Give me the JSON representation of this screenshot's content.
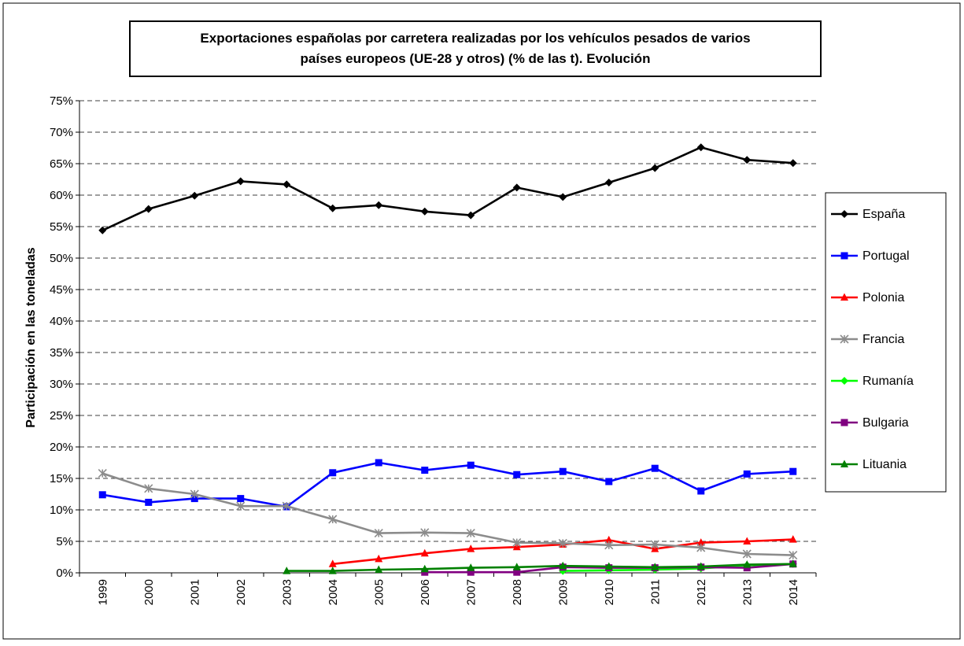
{
  "chart_data": {
    "type": "line",
    "title_line1": "Exportaciones españolas por carretera realizadas por los vehículos pesados de varios",
    "title_line2": "países europeos (UE-28 y otros) (% de las t). Evolución",
    "xlabel": "",
    "ylabel": "Participación en las toneladas",
    "ylim": [
      0,
      75
    ],
    "ytick_step": 5,
    "yticks": [
      "0%",
      "5%",
      "10%",
      "15%",
      "20%",
      "25%",
      "30%",
      "35%",
      "40%",
      "45%",
      "50%",
      "55%",
      "60%",
      "65%",
      "70%",
      "75%"
    ],
    "grid": true,
    "legend_position": "right",
    "categories": [
      "1999",
      "2000",
      "2001",
      "2002",
      "2003",
      "2004",
      "2005",
      "2006",
      "2007",
      "2008",
      "2009",
      "2010",
      "2011",
      "2012",
      "2013",
      "2014"
    ],
    "series": [
      {
        "name": "España",
        "color": "#000000",
        "marker": "diamond",
        "values": [
          54.4,
          57.8,
          59.9,
          62.2,
          61.7,
          57.9,
          58.4,
          57.4,
          56.8,
          61.2,
          59.7,
          62.0,
          64.3,
          67.6,
          65.6,
          65.1
        ]
      },
      {
        "name": "Portugal",
        "color": "#0000ff",
        "marker": "square",
        "values": [
          12.4,
          11.2,
          11.8,
          11.8,
          10.5,
          15.9,
          17.5,
          16.3,
          17.1,
          15.6,
          16.1,
          14.5,
          16.6,
          13.0,
          15.7,
          16.1
        ]
      },
      {
        "name": "Polonia",
        "color": "#ff0000",
        "marker": "triangle",
        "values": [
          null,
          null,
          null,
          null,
          null,
          1.4,
          2.2,
          3.1,
          3.8,
          4.1,
          4.5,
          5.2,
          3.8,
          4.8,
          5.0,
          5.3
        ]
      },
      {
        "name": "Francia",
        "color": "#8c8c8c",
        "marker": "asterisk",
        "values": [
          15.8,
          13.4,
          12.5,
          10.6,
          10.6,
          8.5,
          6.3,
          6.4,
          6.3,
          4.8,
          4.7,
          4.4,
          4.5,
          4.0,
          3.0,
          2.8
        ]
      },
      {
        "name": "Rumanía",
        "color": "#00ff00",
        "marker": "diamond",
        "values": [
          null,
          null,
          null,
          null,
          null,
          null,
          null,
          null,
          null,
          null,
          0.3,
          0.4,
          0.5,
          0.7,
          1.2,
          1.4
        ]
      },
      {
        "name": "Bulgaria",
        "color": "#800080",
        "marker": "square",
        "values": [
          null,
          null,
          null,
          null,
          null,
          null,
          null,
          0.1,
          0.1,
          0.1,
          0.9,
          0.8,
          0.8,
          0.9,
          0.8,
          1.4
        ]
      },
      {
        "name": "Lituania",
        "color": "#008000",
        "marker": "triangle",
        "values": [
          null,
          null,
          null,
          null,
          0.3,
          0.3,
          0.5,
          0.6,
          0.8,
          0.9,
          1.1,
          1.0,
          0.9,
          1.0,
          1.3,
          1.4
        ]
      }
    ]
  }
}
